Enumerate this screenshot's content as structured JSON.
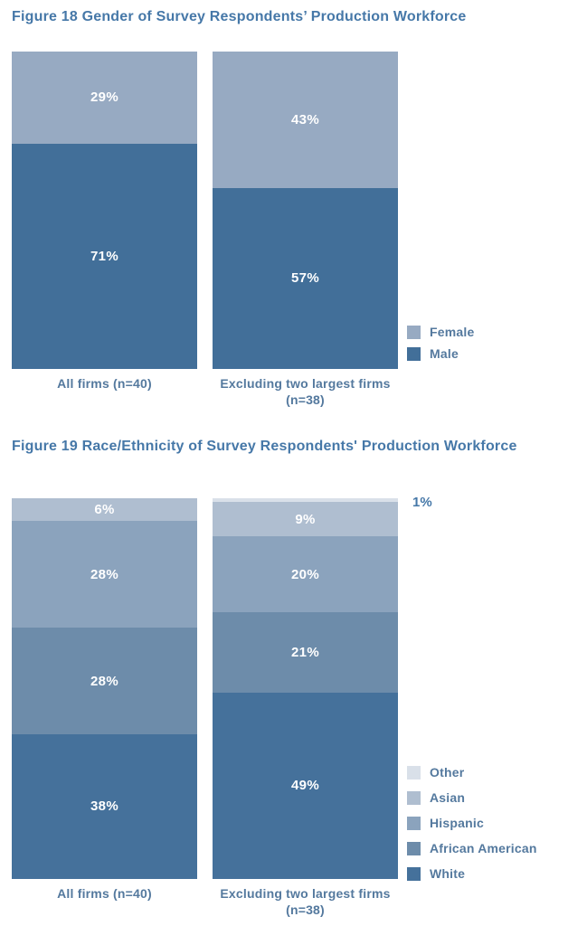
{
  "page": {
    "background_color": "#ffffff",
    "title_color": "#4678a8",
    "label_color": "#54799e",
    "value_label_color": "#ffffff"
  },
  "chart_data": [
    {
      "type": "bar",
      "stacked": true,
      "orientation": "vertical",
      "title": "Figure 18 Gender of Survey Respondents’ Production Workforce",
      "categories": [
        "All firms (n=40)",
        "Excluding two largest firms\n(n=38)"
      ],
      "series": [
        {
          "name": "Female",
          "color": "#97aac2",
          "values": [
            29,
            43
          ]
        },
        {
          "name": "Male",
          "color": "#426f99",
          "values": [
            71,
            57
          ]
        }
      ],
      "value_suffix": "%",
      "ylim": [
        0,
        100
      ],
      "grid": false,
      "legend_position": "right-bottom"
    },
    {
      "type": "bar",
      "stacked": true,
      "orientation": "vertical",
      "title": "Figure 19 Race/Ethnicity of Survey Respondents' Production Workforce",
      "categories": [
        "All firms (n=40)",
        "Excluding two largest firms\n(n=38)"
      ],
      "series": [
        {
          "name": "Other",
          "color": "#d9e0e9",
          "values": [
            0,
            1
          ]
        },
        {
          "name": "Asian",
          "color": "#afbed0",
          "values": [
            6,
            9
          ]
        },
        {
          "name": "Hispanic",
          "color": "#8ba3bd",
          "values": [
            28,
            20
          ]
        },
        {
          "name": "African American",
          "color": "#6d8caa",
          "values": [
            28,
            21
          ]
        },
        {
          "name": "White",
          "color": "#45719b",
          "values": [
            38,
            49
          ]
        }
      ],
      "value_suffix": "%",
      "ylim": [
        0,
        100
      ],
      "grid": false,
      "legend_position": "right-bottom"
    }
  ]
}
